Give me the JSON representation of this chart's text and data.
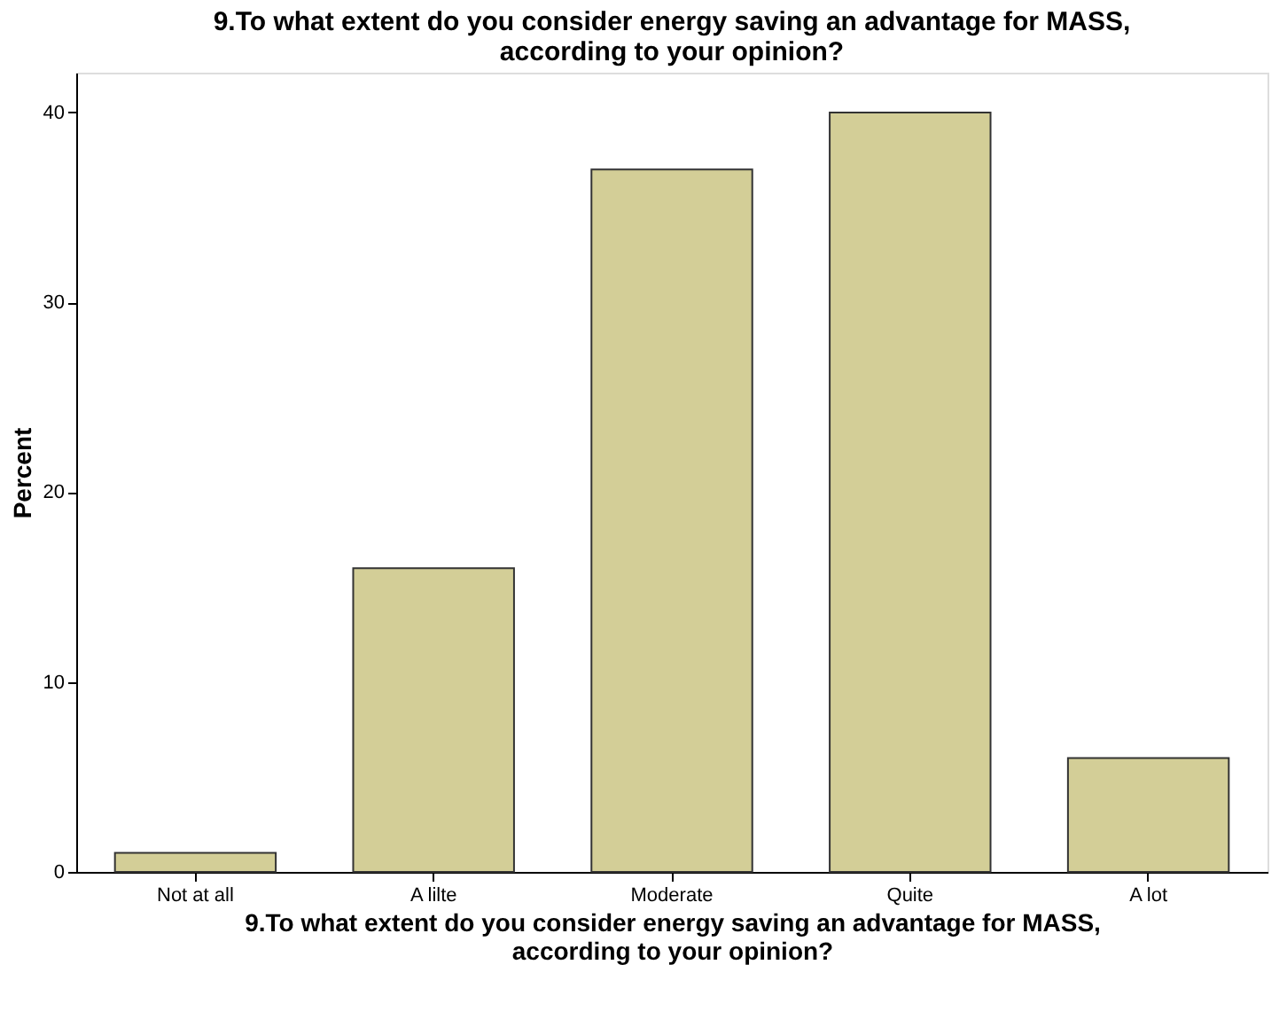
{
  "chart_data": {
    "type": "bar",
    "title": "9.To what extent do you consider energy saving an advantage for MASS,\naccording to your opinion?",
    "xlabel": "9.To what extent do you consider energy saving an advantage for MASS,\naccording to your opinion?",
    "ylabel": "Percent",
    "categories": [
      "Not at all",
      "A lilte",
      "Moderate",
      "Quite",
      "A lot"
    ],
    "values": [
      1,
      16,
      37,
      40,
      6
    ],
    "color": "#d3ce97",
    "ylim": [
      0,
      42.1
    ],
    "yticks": [
      0,
      10,
      20,
      30,
      40
    ],
    "grid": false
  }
}
